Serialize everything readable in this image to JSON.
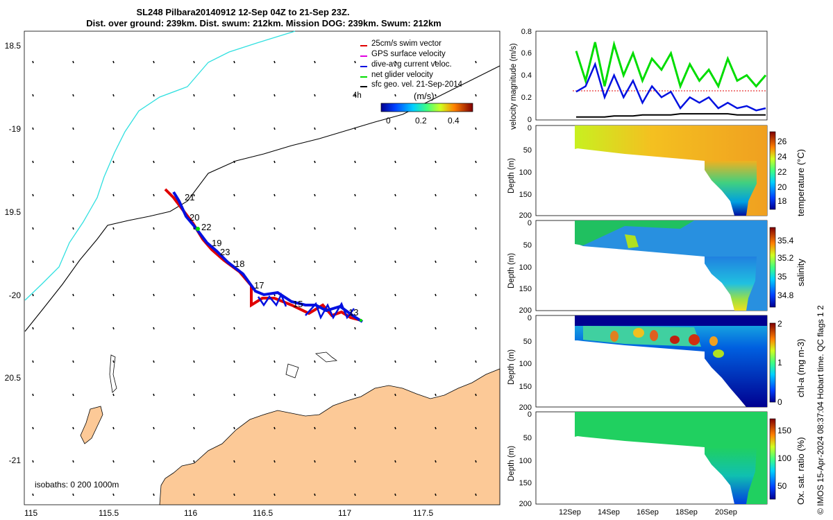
{
  "header": {
    "line1": "SL248 Pilbara20140912 12-Sep 04Z to 21-Sep 23Z.",
    "line2": "Dist. over ground: 239km. Dist. swum: 212km. Mission DOG: 239km. Swum: 212km"
  },
  "map": {
    "lon_ticks": [
      "115",
      "115.5",
      "116",
      "116.5",
      "117",
      "117.5"
    ],
    "lat_ticks": [
      "18.5",
      "-19",
      "19.5",
      "-20",
      "20.5",
      "-21"
    ],
    "legend": [
      {
        "label": "25cm/s swim vector",
        "color": "#e00000"
      },
      {
        "label": "GPS surface velocity",
        "color": "#e000e0"
      },
      {
        "label": "dive-avg current veloc.",
        "color": "#0000e0"
      },
      {
        "label": "net glider velocity",
        "color": "#00dd00"
      },
      {
        "label": "sfc geo. vel. 21-Sep-2014",
        "color": "#000000"
      }
    ],
    "scale_note": "4h",
    "colorbar_title": "(m/s)",
    "colorbar_ticks": [
      "0",
      "0.2",
      "0.4"
    ],
    "isobaths_label": "isobaths: 0   200  1000m",
    "day_labels": [
      "21",
      "20",
      "22",
      "19",
      "23",
      "18",
      "17",
      "15",
      "13"
    ],
    "track_points": [
      [
        115.87,
        -19.37
      ],
      [
        115.93,
        -19.45
      ],
      [
        116.0,
        -19.55
      ],
      [
        116.07,
        -19.63
      ],
      [
        116.15,
        -19.73
      ],
      [
        116.25,
        -19.83
      ],
      [
        116.35,
        -19.92
      ],
      [
        116.43,
        -20.02
      ],
      [
        116.55,
        -20.04
      ],
      [
        116.7,
        -20.1
      ],
      [
        116.85,
        -20.12
      ],
      [
        117.0,
        -20.14
      ],
      [
        117.1,
        -20.18
      ]
    ]
  },
  "chart_data": [
    {
      "type": "line",
      "ylabel": "velocity magnitude (m/s)",
      "ylim": [
        0,
        0.8
      ],
      "y_ticks": [
        "0",
        "0.2",
        "0.4",
        "0.6",
        "0.8"
      ],
      "series": [
        {
          "values": [
            0.62,
            0.35,
            0.7,
            0.3,
            0.68,
            0.4,
            0.6,
            0.35,
            0.55,
            0.45,
            0.6,
            0.3,
            0.5,
            0.35,
            0.45,
            0.3,
            0.55,
            0.35,
            0.4,
            0.3,
            0.4
          ]
        },
        {
          "values": [
            0.25,
            0.3,
            0.5,
            0.2,
            0.4,
            0.2,
            0.35,
            0.15,
            0.3,
            0.2,
            0.25,
            0.1,
            0.2,
            0.15,
            0.2,
            0.1,
            0.15,
            0.1,
            0.12,
            0.08,
            0.1
          ]
        },
        {
          "values": [
            0.02,
            0.02,
            0.02,
            0.02,
            0.03,
            0.03,
            0.03,
            0.04,
            0.04,
            0.04,
            0.04,
            0.05,
            0.05,
            0.05,
            0.05,
            0.05,
            0.05,
            0.04,
            0.04,
            0.04,
            0.04
          ]
        }
      ]
    },
    {
      "type": "heatmap",
      "ylabel": "Depth (m)",
      "colorbar_label": "temperature (°C)",
      "colorbar_ticks": [
        "18",
        "20",
        "22",
        "24",
        "26"
      ],
      "y_ticks": [
        "0",
        "50",
        "100",
        "150",
        "200"
      ]
    },
    {
      "type": "heatmap",
      "ylabel": "Depth (m)",
      "colorbar_label": "salinity",
      "colorbar_ticks": [
        "34.8",
        "35",
        "35.2",
        "35.4"
      ],
      "y_ticks": [
        "0",
        "50",
        "100",
        "150",
        "200"
      ]
    },
    {
      "type": "heatmap",
      "ylabel": "Depth (m)",
      "colorbar_label": "chl-a (mg m-3)",
      "colorbar_ticks": [
        "0",
        "1",
        "2"
      ],
      "y_ticks": [
        "0",
        "50",
        "100",
        "150",
        "200"
      ]
    },
    {
      "type": "heatmap",
      "ylabel": "Depth (m)",
      "colorbar_label": "Ox. sat. ratio (%)",
      "colorbar_ticks": [
        "50",
        "100",
        "150"
      ],
      "y_ticks": [
        "0",
        "50",
        "100",
        "150",
        "200"
      ],
      "x_ticks": [
        "12Sep",
        "14Sep",
        "16Sep",
        "18Sep",
        "20Sep"
      ]
    }
  ],
  "footer": {
    "credit": "© IMOS 15-Apr-2024 08:37:04 Hobart time. QC flags 1  2"
  }
}
